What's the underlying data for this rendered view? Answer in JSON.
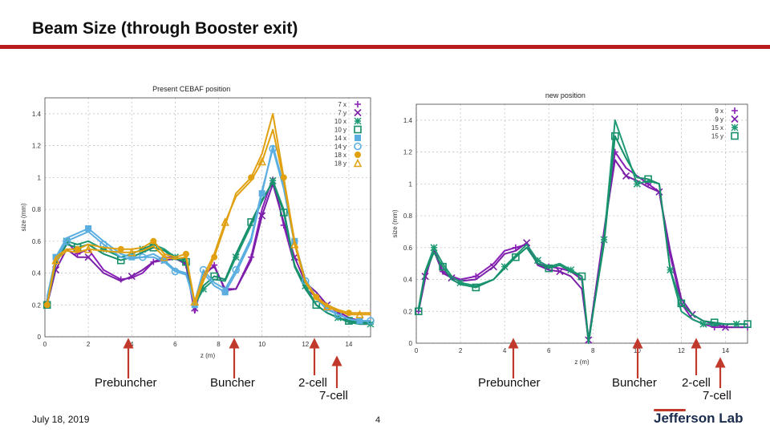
{
  "slide": {
    "title": "Beam Size (through Booster exit)",
    "date": "July 18, 2019",
    "page": "4",
    "logo": "Jefferson Lab",
    "accent": "#b81c1c"
  },
  "annotations": {
    "left": [
      "Prebuncher",
      "Buncher",
      "2-cell",
      "7-cell"
    ],
    "right": [
      "Prebuncher",
      "Buncher",
      "2-cell",
      "7-cell"
    ],
    "arrow_color": "#c0392b"
  },
  "chart_data": [
    {
      "type": "line",
      "title": "Present CEBAF position",
      "xlabel": "z (m)",
      "ylabel": "size (mm)",
      "xlim": [
        0,
        15
      ],
      "ylim": [
        0,
        1.5
      ],
      "xticks": [
        0,
        2,
        4,
        6,
        8,
        10,
        12,
        14
      ],
      "yticks": [
        0,
        0.2,
        0.4,
        0.6,
        0.8,
        1,
        1.2,
        1.4
      ],
      "legend_position": "top-right",
      "series": [
        {
          "name": "7 x",
          "color": "#8a1fb8",
          "marker": "+",
          "x": [
            0.1,
            0.5,
            1.0,
            1.5,
            2.0,
            2.7,
            3.5,
            4.0,
            4.5,
            5.0,
            5.5,
            6.0,
            6.5,
            6.9,
            7.3,
            7.8,
            8.3,
            8.8,
            9.5,
            10.0,
            10.5,
            11.0,
            11.5,
            12.0,
            12.5,
            13.0,
            13.5,
            14.0,
            14.5,
            15.0
          ],
          "y": [
            0.22,
            0.45,
            0.6,
            0.52,
            0.55,
            0.42,
            0.36,
            0.37,
            0.4,
            0.47,
            0.5,
            0.5,
            0.45,
            0.15,
            0.38,
            0.45,
            0.29,
            0.3,
            0.5,
            0.8,
            1.0,
            0.7,
            0.45,
            0.3,
            0.25,
            0.2,
            0.15,
            0.1,
            0.08,
            0.08
          ]
        },
        {
          "name": "7 y",
          "color": "#7a1fa8",
          "marker": "x",
          "x": [
            0.1,
            0.5,
            1.0,
            1.5,
            2.0,
            2.7,
            3.5,
            4.0,
            4.5,
            5.0,
            5.5,
            6.0,
            6.5,
            6.9,
            7.3,
            7.8,
            8.3,
            8.8,
            9.5,
            10.0,
            10.5,
            11.0,
            11.5,
            12.0,
            12.5,
            13.0,
            13.5,
            14.0,
            14.5,
            15.0
          ],
          "y": [
            0.2,
            0.42,
            0.55,
            0.5,
            0.5,
            0.4,
            0.35,
            0.38,
            0.42,
            0.47,
            0.48,
            0.49,
            0.46,
            0.18,
            0.4,
            0.44,
            0.3,
            0.3,
            0.48,
            0.76,
            0.96,
            0.72,
            0.5,
            0.34,
            0.28,
            0.2,
            0.16,
            0.12,
            0.1,
            0.1
          ]
        },
        {
          "name": "10 x",
          "color": "#1f9a75",
          "marker": "*",
          "x": [
            0.1,
            0.5,
            1.0,
            1.5,
            2.0,
            2.7,
            3.5,
            4.0,
            4.5,
            5.0,
            5.5,
            6.0,
            6.5,
            6.9,
            7.3,
            7.8,
            8.3,
            8.8,
            9.5,
            10.0,
            10.5,
            11.0,
            11.5,
            12.0,
            12.5,
            13.0,
            13.5,
            14.0,
            14.5,
            15.0
          ],
          "y": [
            0.22,
            0.48,
            0.6,
            0.58,
            0.6,
            0.55,
            0.5,
            0.52,
            0.55,
            0.58,
            0.55,
            0.5,
            0.48,
            0.2,
            0.3,
            0.36,
            0.35,
            0.5,
            0.7,
            0.85,
            0.98,
            0.8,
            0.45,
            0.32,
            0.2,
            0.15,
            0.12,
            0.09,
            0.08,
            0.08
          ]
        },
        {
          "name": "10 y",
          "color": "#168f6a",
          "marker": "square-open",
          "x": [
            0.1,
            0.5,
            1.0,
            1.5,
            2.0,
            2.7,
            3.5,
            4.0,
            4.5,
            5.0,
            5.5,
            6.0,
            6.5,
            6.9,
            7.3,
            7.8,
            8.3,
            8.8,
            9.5,
            10.0,
            10.5,
            11.0,
            11.5,
            12.0,
            12.5,
            13.0,
            13.5,
            14.0,
            14.5,
            15.0
          ],
          "y": [
            0.2,
            0.46,
            0.58,
            0.56,
            0.58,
            0.52,
            0.48,
            0.5,
            0.53,
            0.56,
            0.54,
            0.49,
            0.47,
            0.21,
            0.32,
            0.38,
            0.36,
            0.52,
            0.72,
            0.86,
            0.97,
            0.78,
            0.44,
            0.3,
            0.2,
            0.15,
            0.12,
            0.1,
            0.09,
            0.09
          ]
        },
        {
          "name": "14 x",
          "color": "#5aaee0",
          "marker": "square",
          "x": [
            0.1,
            0.5,
            1.0,
            1.5,
            2.0,
            2.7,
            3.5,
            4.0,
            4.5,
            5.0,
            5.5,
            6.0,
            6.5,
            6.9,
            7.3,
            7.8,
            8.3,
            8.8,
            9.5,
            10.0,
            10.5,
            11.0,
            11.5,
            12.0,
            12.5,
            13.0,
            13.5,
            14.0,
            14.5,
            15.0
          ],
          "y": [
            0.25,
            0.5,
            0.62,
            0.65,
            0.68,
            0.6,
            0.52,
            0.5,
            0.5,
            0.52,
            0.48,
            0.42,
            0.4,
            0.2,
            0.4,
            0.32,
            0.28,
            0.4,
            0.6,
            0.9,
            1.2,
            0.95,
            0.6,
            0.36,
            0.25,
            0.18,
            0.14,
            0.11,
            0.1,
            0.1
          ]
        },
        {
          "name": "14 y",
          "color": "#5aaee0",
          "marker": "circle-open",
          "x": [
            0.1,
            0.5,
            1.0,
            1.5,
            2.0,
            2.7,
            3.5,
            4.0,
            4.5,
            5.0,
            5.5,
            6.0,
            6.5,
            6.9,
            7.3,
            7.8,
            8.3,
            8.8,
            9.5,
            10.0,
            10.5,
            11.0,
            11.5,
            12.0,
            12.5,
            13.0,
            13.5,
            14.0,
            14.5,
            15.0
          ],
          "y": [
            0.24,
            0.48,
            0.6,
            0.63,
            0.66,
            0.58,
            0.5,
            0.49,
            0.5,
            0.5,
            0.47,
            0.41,
            0.39,
            0.22,
            0.42,
            0.34,
            0.3,
            0.42,
            0.62,
            0.92,
            1.18,
            0.93,
            0.58,
            0.35,
            0.24,
            0.17,
            0.14,
            0.11,
            0.1,
            0.1
          ]
        },
        {
          "name": "18 x",
          "color": "#e0a010",
          "marker": "circle",
          "x": [
            0.1,
            0.5,
            1.0,
            1.5,
            2.0,
            2.7,
            3.5,
            4.0,
            4.5,
            5.0,
            5.5,
            6.0,
            6.5,
            6.9,
            7.3,
            7.8,
            8.3,
            8.8,
            9.5,
            10.0,
            10.5,
            11.0,
            11.5,
            12.0,
            12.5,
            13.0,
            13.5,
            14.0,
            14.5,
            15.0
          ],
          "y": [
            0.2,
            0.5,
            0.55,
            0.55,
            0.58,
            0.56,
            0.55,
            0.55,
            0.56,
            0.6,
            0.52,
            0.5,
            0.52,
            0.2,
            0.35,
            0.5,
            0.7,
            0.9,
            1.0,
            1.15,
            1.4,
            1.0,
            0.6,
            0.35,
            0.25,
            0.2,
            0.17,
            0.15,
            0.15,
            0.15
          ]
        },
        {
          "name": "18 y",
          "color": "#e0a010",
          "marker": "triangle-open",
          "x": [
            0.1,
            0.5,
            1.0,
            1.5,
            2.0,
            2.7,
            3.5,
            4.0,
            4.5,
            5.0,
            5.5,
            6.0,
            6.5,
            6.9,
            7.3,
            7.8,
            8.3,
            8.8,
            9.5,
            10.0,
            10.5,
            11.0,
            11.5,
            12.0,
            12.5,
            13.0,
            13.5,
            14.0,
            14.5,
            15.0
          ],
          "y": [
            0.2,
            0.48,
            0.54,
            0.53,
            0.55,
            0.54,
            0.53,
            0.53,
            0.54,
            0.57,
            0.5,
            0.49,
            0.5,
            0.22,
            0.38,
            0.52,
            0.72,
            0.88,
            0.98,
            1.1,
            1.3,
            0.98,
            0.58,
            0.34,
            0.24,
            0.19,
            0.16,
            0.14,
            0.14,
            0.14
          ]
        }
      ]
    },
    {
      "type": "line",
      "title": "new position",
      "xlabel": "z (m)",
      "ylabel": "size (mm)",
      "xlim": [
        0,
        15
      ],
      "ylim": [
        0,
        1.5
      ],
      "xticks": [
        0,
        2,
        4,
        6,
        8,
        10,
        12,
        14
      ],
      "yticks": [
        0,
        0.2,
        0.4,
        0.6,
        0.8,
        1,
        1.2,
        1.4
      ],
      "legend_position": "top-right",
      "series": [
        {
          "name": "9 x",
          "color": "#8a1fb8",
          "marker": "+",
          "x": [
            0.1,
            0.4,
            0.8,
            1.2,
            1.6,
            2.0,
            2.7,
            3.5,
            4.0,
            4.5,
            5.0,
            5.5,
            6.0,
            6.5,
            7.0,
            7.5,
            7.8,
            8.5,
            9.0,
            9.5,
            10.0,
            10.5,
            11.0,
            11.5,
            12.0,
            12.5,
            13.0,
            13.5,
            14.0,
            14.5,
            15.0
          ],
          "y": [
            0.2,
            0.4,
            0.6,
            0.45,
            0.42,
            0.4,
            0.42,
            0.5,
            0.58,
            0.6,
            0.62,
            0.5,
            0.48,
            0.47,
            0.45,
            0.4,
            0.0,
            0.7,
            1.2,
            1.1,
            1.05,
            1.0,
            0.95,
            0.55,
            0.25,
            0.15,
            0.12,
            0.1,
            0.1,
            0.1,
            0.1
          ]
        },
        {
          "name": "9 y",
          "color": "#7a1fa8",
          "marker": "x",
          "x": [
            0.1,
            0.4,
            0.8,
            1.2,
            1.6,
            2.0,
            2.7,
            3.5,
            4.0,
            4.5,
            5.0,
            5.5,
            6.0,
            6.5,
            7.0,
            7.5,
            7.8,
            8.5,
            9.0,
            9.5,
            10.0,
            10.5,
            11.0,
            11.5,
            12.0,
            12.5,
            13.0,
            13.5,
            14.0,
            14.5,
            15.0
          ],
          "y": [
            0.2,
            0.42,
            0.58,
            0.44,
            0.41,
            0.39,
            0.4,
            0.48,
            0.56,
            0.58,
            0.63,
            0.49,
            0.46,
            0.45,
            0.42,
            0.34,
            0.02,
            0.7,
            1.15,
            1.05,
            1.02,
            0.98,
            0.95,
            0.58,
            0.28,
            0.18,
            0.14,
            0.12,
            0.1,
            0.1,
            0.1
          ]
        },
        {
          "name": "15 x",
          "color": "#1f9a75",
          "marker": "*",
          "x": [
            0.1,
            0.4,
            0.8,
            1.2,
            1.6,
            2.0,
            2.7,
            3.5,
            4.0,
            4.5,
            5.0,
            5.5,
            6.0,
            6.5,
            7.0,
            7.5,
            7.8,
            8.5,
            9.0,
            9.5,
            10.0,
            10.5,
            11.0,
            11.5,
            12.0,
            12.5,
            13.0,
            13.5,
            14.0,
            14.5,
            15.0
          ],
          "y": [
            0.22,
            0.45,
            0.6,
            0.5,
            0.42,
            0.38,
            0.36,
            0.4,
            0.48,
            0.55,
            0.62,
            0.52,
            0.48,
            0.5,
            0.46,
            0.42,
            0.0,
            0.65,
            1.4,
            1.2,
            1.0,
            1.02,
            1.0,
            0.46,
            0.2,
            0.15,
            0.12,
            0.12,
            0.12,
            0.12,
            0.12
          ]
        },
        {
          "name": "15 y",
          "color": "#168f6a",
          "marker": "square-open",
          "x": [
            0.1,
            0.4,
            0.8,
            1.2,
            1.6,
            2.0,
            2.7,
            3.5,
            4.0,
            4.5,
            5.0,
            5.5,
            6.0,
            6.5,
            7.0,
            7.5,
            7.8,
            8.5,
            9.0,
            9.5,
            10.0,
            10.5,
            11.0,
            11.5,
            12.0,
            12.5,
            13.0,
            13.5,
            14.0,
            14.5,
            15.0
          ],
          "y": [
            0.2,
            0.44,
            0.57,
            0.48,
            0.4,
            0.37,
            0.35,
            0.4,
            0.47,
            0.54,
            0.6,
            0.5,
            0.47,
            0.49,
            0.45,
            0.42,
            0.02,
            0.62,
            1.3,
            1.16,
            1.04,
            1.03,
            1.0,
            0.46,
            0.25,
            0.18,
            0.14,
            0.13,
            0.12,
            0.12,
            0.12
          ]
        }
      ]
    }
  ]
}
